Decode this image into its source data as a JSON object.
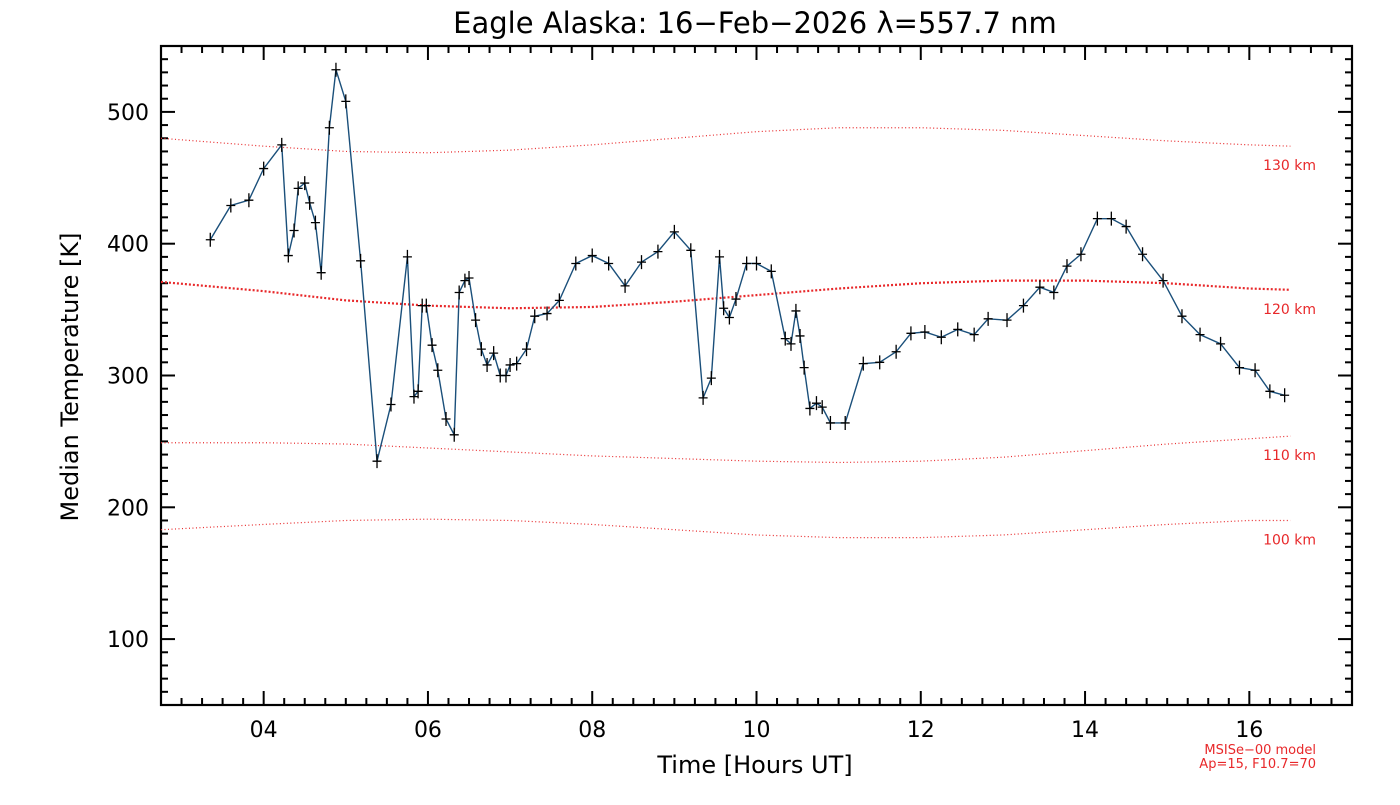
{
  "chart_data": {
    "type": "line",
    "title": "Eagle Alaska: 16−Feb−2026 λ=557.7 nm",
    "xlabel": "Time [Hours UT]",
    "ylabel": "Median Temperature [K]",
    "xlim": [
      2.75,
      17.25
    ],
    "ylim": [
      50,
      550
    ],
    "xticks": [
      {
        "value": 4,
        "label": "04"
      },
      {
        "value": 6,
        "label": "06"
      },
      {
        "value": 8,
        "label": "08"
      },
      {
        "value": 10,
        "label": "10"
      },
      {
        "value": 12,
        "label": "12"
      },
      {
        "value": 14,
        "label": "14"
      },
      {
        "value": 16,
        "label": "16"
      }
    ],
    "yticks": [
      {
        "value": 100,
        "label": "100"
      },
      {
        "value": 200,
        "label": "200"
      },
      {
        "value": 300,
        "label": "300"
      },
      {
        "value": 400,
        "label": "400"
      },
      {
        "value": 500,
        "label": "500"
      }
    ],
    "grid": false,
    "series": [
      {
        "color": "#1a4f7a",
        "marker": "plus",
        "x": [
          3.35,
          3.6,
          3.82,
          4.0,
          4.22,
          4.3,
          4.37,
          4.42,
          4.5,
          4.56,
          4.63,
          4.7,
          4.8,
          4.88,
          5.0,
          5.18,
          5.38,
          5.55,
          5.75,
          5.83,
          5.88,
          5.93,
          5.98,
          6.05,
          6.12,
          6.22,
          6.32,
          6.38,
          6.45,
          6.5,
          6.58,
          6.65,
          6.72,
          6.8,
          6.88,
          6.95,
          7.0,
          7.08,
          7.2,
          7.3,
          7.45,
          7.6,
          7.8,
          8.0,
          8.2,
          8.4,
          8.6,
          8.8,
          9.0,
          9.2,
          9.35,
          9.45,
          9.55,
          9.6,
          9.67,
          9.75,
          9.88,
          10.0,
          10.18,
          10.35,
          10.42,
          10.48,
          10.53,
          10.58,
          10.65,
          10.73,
          10.8,
          10.9,
          11.08,
          11.3,
          11.5,
          11.7,
          11.88,
          12.05,
          12.25,
          12.45,
          12.65,
          12.82,
          13.05,
          13.25,
          13.45,
          13.62,
          13.78,
          13.95,
          14.15,
          14.32,
          14.5,
          14.7,
          14.95,
          15.18,
          15.4,
          15.65,
          15.88,
          16.07,
          16.25,
          16.43
        ],
        "values": [
          403,
          429,
          433,
          457,
          475,
          391,
          410,
          442,
          446,
          431,
          416,
          378,
          488,
          532,
          508,
          387,
          235,
          278,
          390,
          284,
          288,
          353,
          353,
          323,
          304,
          267,
          255,
          363,
          372,
          374,
          342,
          320,
          308,
          317,
          300,
          300,
          308,
          309,
          320,
          345,
          347,
          357,
          385,
          391,
          385,
          368,
          386,
          394,
          409,
          395,
          283,
          298,
          390,
          351,
          344,
          358,
          385,
          385,
          379,
          328,
          324,
          349,
          330,
          306,
          275,
          279,
          276,
          264,
          264,
          309,
          310,
          318,
          332,
          333,
          329,
          335,
          331,
          343,
          342,
          353,
          367,
          363,
          383,
          392,
          419,
          419,
          413,
          392,
          372,
          345,
          331,
          324,
          306,
          304,
          288,
          285
        ]
      }
    ],
    "model_curves": [
      {
        "label": "130 km",
        "x": [
          2.75,
          4,
          5,
          6,
          7,
          8,
          9,
          10,
          11,
          12,
          13,
          14,
          15,
          16,
          16.5
        ],
        "values": [
          480,
          474,
          470,
          469,
          471,
          475,
          480,
          485,
          488,
          488,
          486,
          482,
          478,
          475,
          474
        ]
      },
      {
        "label": "120 km",
        "x": [
          2.75,
          4,
          5,
          6,
          7,
          8,
          9,
          10,
          11,
          12,
          13,
          14,
          15,
          16,
          16.5
        ],
        "values": [
          371,
          364,
          357,
          353,
          351,
          352,
          356,
          361,
          366,
          370,
          372,
          372,
          370,
          366,
          365
        ]
      },
      {
        "label": "110 km",
        "x": [
          2.75,
          4,
          5,
          6,
          7,
          8,
          9,
          10,
          11,
          12,
          13,
          14,
          15,
          16,
          16.5
        ],
        "values": [
          249,
          249,
          248,
          245,
          242,
          239,
          237,
          235,
          234,
          235,
          238,
          243,
          248,
          252,
          254
        ]
      },
      {
        "label": "100 km",
        "x": [
          2.75,
          4,
          5,
          6,
          7,
          8,
          9,
          10,
          11,
          12,
          13,
          14,
          15,
          16,
          16.5
        ],
        "values": [
          183,
          187,
          190,
          191,
          190,
          187,
          183,
          179,
          177,
          177,
          179,
          183,
          187,
          190,
          190
        ]
      }
    ],
    "model_curve_color": "#e8282a",
    "annotations": [
      "MSISe−00 model",
      "Ap=15, F10.7=70"
    ]
  }
}
